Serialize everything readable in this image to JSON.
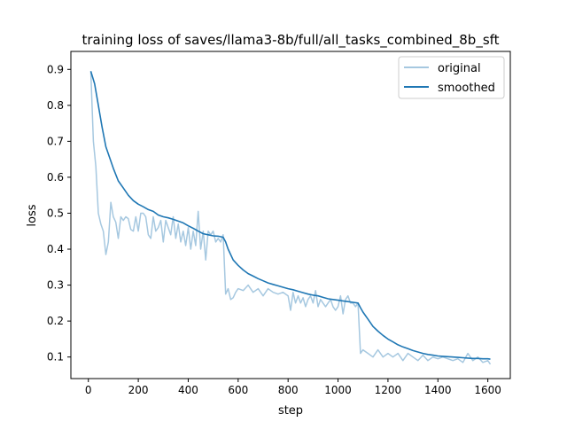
{
  "chart_data": {
    "type": "line",
    "title": "training loss of saves/llama3-8b/full/all_tasks_combined_8b_sft",
    "xlabel": "step",
    "ylabel": "loss",
    "xlim": [
      -70,
      1690
    ],
    "ylim": [
      0.04,
      0.95
    ],
    "xticks": [
      0,
      200,
      400,
      600,
      800,
      1000,
      1200,
      1400,
      1600
    ],
    "yticks": [
      0.1,
      0.2,
      0.3,
      0.4,
      0.5,
      0.6,
      0.7,
      0.8,
      0.9
    ],
    "xtick_labels": [
      "0",
      "200",
      "400",
      "600",
      "800",
      "1000",
      "1200",
      "1400",
      "1600"
    ],
    "ytick_labels": [
      "0.1",
      "0.2",
      "0.3",
      "0.4",
      "0.5",
      "0.6",
      "0.7",
      "0.8",
      "0.9"
    ],
    "grid": false,
    "legend_position": "top-right",
    "series": [
      {
        "name": "original",
        "color": "#a6c8e0",
        "x": [
          10,
          20,
          30,
          40,
          50,
          60,
          70,
          80,
          90,
          100,
          110,
          120,
          130,
          140,
          150,
          160,
          170,
          180,
          190,
          200,
          210,
          220,
          230,
          240,
          250,
          260,
          270,
          280,
          290,
          300,
          310,
          320,
          330,
          340,
          350,
          360,
          370,
          380,
          390,
          400,
          410,
          420,
          430,
          440,
          450,
          460,
          470,
          480,
          490,
          500,
          510,
          520,
          530,
          540,
          550,
          560,
          570,
          580,
          590,
          600,
          620,
          640,
          660,
          680,
          700,
          720,
          740,
          760,
          780,
          800,
          810,
          820,
          830,
          840,
          850,
          860,
          870,
          880,
          890,
          900,
          910,
          920,
          930,
          940,
          950,
          960,
          970,
          980,
          990,
          1000,
          1010,
          1020,
          1030,
          1040,
          1050,
          1060,
          1070,
          1080,
          1090,
          1100,
          1120,
          1140,
          1160,
          1180,
          1200,
          1220,
          1240,
          1260,
          1280,
          1300,
          1320,
          1340,
          1360,
          1380,
          1400,
          1420,
          1440,
          1460,
          1480,
          1500,
          1520,
          1540,
          1560,
          1580,
          1600,
          1610
        ],
        "values": [
          0.895,
          0.7,
          0.63,
          0.5,
          0.47,
          0.45,
          0.385,
          0.42,
          0.53,
          0.49,
          0.475,
          0.43,
          0.49,
          0.48,
          0.49,
          0.485,
          0.455,
          0.45,
          0.49,
          0.45,
          0.5,
          0.5,
          0.49,
          0.44,
          0.43,
          0.49,
          0.45,
          0.46,
          0.48,
          0.42,
          0.48,
          0.46,
          0.44,
          0.49,
          0.43,
          0.47,
          0.42,
          0.45,
          0.41,
          0.46,
          0.4,
          0.45,
          0.41,
          0.505,
          0.4,
          0.45,
          0.37,
          0.45,
          0.44,
          0.45,
          0.42,
          0.43,
          0.42,
          0.44,
          0.275,
          0.29,
          0.26,
          0.265,
          0.28,
          0.29,
          0.285,
          0.3,
          0.28,
          0.29,
          0.27,
          0.29,
          0.28,
          0.275,
          0.28,
          0.27,
          0.23,
          0.28,
          0.25,
          0.27,
          0.25,
          0.265,
          0.24,
          0.26,
          0.27,
          0.25,
          0.285,
          0.24,
          0.26,
          0.25,
          0.24,
          0.25,
          0.26,
          0.24,
          0.23,
          0.24,
          0.27,
          0.22,
          0.26,
          0.27,
          0.25,
          0.25,
          0.24,
          0.25,
          0.11,
          0.12,
          0.11,
          0.1,
          0.12,
          0.1,
          0.11,
          0.1,
          0.11,
          0.09,
          0.11,
          0.1,
          0.09,
          0.105,
          0.09,
          0.1,
          0.095,
          0.1,
          0.095,
          0.09,
          0.095,
          0.085,
          0.11,
          0.09,
          0.1,
          0.085,
          0.09,
          0.08
        ]
      },
      {
        "name": "smoothed",
        "color": "#1f77b4",
        "x": [
          10,
          25,
          40,
          55,
          70,
          85,
          100,
          120,
          140,
          160,
          180,
          200,
          220,
          240,
          260,
          280,
          300,
          320,
          340,
          360,
          380,
          400,
          420,
          440,
          460,
          480,
          500,
          520,
          540,
          550,
          560,
          580,
          600,
          620,
          640,
          660,
          680,
          700,
          720,
          740,
          760,
          780,
          800,
          820,
          840,
          860,
          880,
          900,
          920,
          940,
          960,
          980,
          1000,
          1020,
          1040,
          1060,
          1080,
          1090,
          1100,
          1120,
          1140,
          1160,
          1180,
          1200,
          1220,
          1240,
          1260,
          1280,
          1300,
          1320,
          1340,
          1360,
          1380,
          1400,
          1420,
          1440,
          1460,
          1480,
          1500,
          1520,
          1540,
          1560,
          1580,
          1600,
          1610
        ],
        "values": [
          0.895,
          0.86,
          0.8,
          0.74,
          0.685,
          0.655,
          0.625,
          0.59,
          0.57,
          0.55,
          0.535,
          0.525,
          0.518,
          0.51,
          0.505,
          0.495,
          0.49,
          0.487,
          0.483,
          0.478,
          0.473,
          0.465,
          0.458,
          0.45,
          0.443,
          0.44,
          0.437,
          0.436,
          0.433,
          0.42,
          0.4,
          0.37,
          0.355,
          0.342,
          0.332,
          0.325,
          0.318,
          0.312,
          0.306,
          0.302,
          0.298,
          0.294,
          0.29,
          0.287,
          0.283,
          0.279,
          0.275,
          0.272,
          0.27,
          0.266,
          0.262,
          0.26,
          0.258,
          0.256,
          0.254,
          0.252,
          0.25,
          0.237,
          0.225,
          0.205,
          0.185,
          0.172,
          0.16,
          0.15,
          0.142,
          0.134,
          0.128,
          0.123,
          0.118,
          0.114,
          0.11,
          0.107,
          0.105,
          0.103,
          0.102,
          0.101,
          0.1,
          0.099,
          0.098,
          0.097,
          0.096,
          0.096,
          0.095,
          0.095,
          0.094
        ]
      }
    ]
  }
}
